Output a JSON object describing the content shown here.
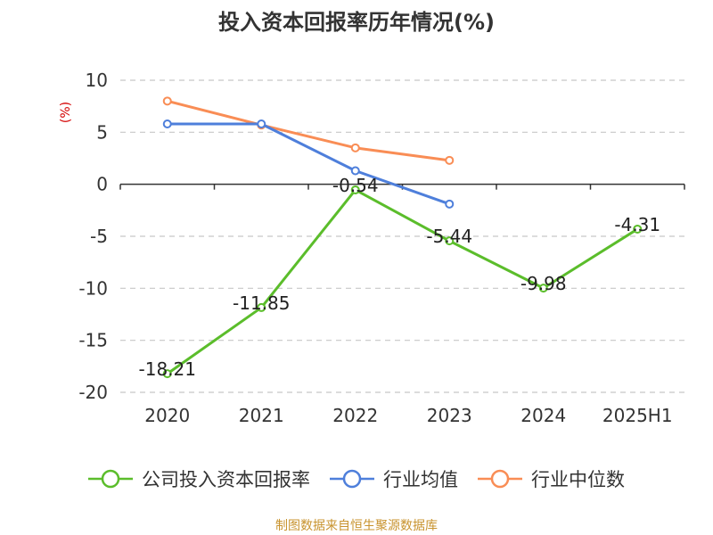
{
  "chart_data": {
    "type": "line",
    "title": "投入资本回报率历年情况(%)",
    "ylabel": "(%)",
    "ylim": [
      -20,
      10
    ],
    "yticks": [
      10,
      5,
      0,
      -5,
      -10,
      -15,
      -20
    ],
    "categories": [
      "2020",
      "2021",
      "2022",
      "2023",
      "2024",
      "2025H1"
    ],
    "grid": true,
    "legend_position": "bottom",
    "series": [
      {
        "name": "公司投入资本回报率",
        "color": "#5bbd2b",
        "values": [
          -18.21,
          -11.85,
          -0.54,
          -5.44,
          -9.98,
          -4.31
        ],
        "labels": [
          "-18.21",
          "-11.85",
          "-0.54",
          "-5.44",
          "-9.98",
          "-4.31"
        ]
      },
      {
        "name": "行业均值",
        "color": "#4e7fdb",
        "values": [
          5.8,
          5.8,
          1.3,
          -1.9,
          null,
          null
        ]
      },
      {
        "name": "行业中位数",
        "color": "#f98d55",
        "values": [
          8.0,
          5.7,
          3.5,
          2.3,
          null,
          null
        ]
      }
    ],
    "source": "制图数据来自恒生聚源数据库"
  }
}
